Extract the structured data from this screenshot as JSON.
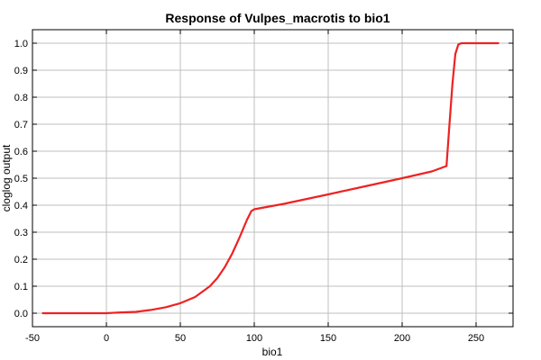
{
  "chart_data": {
    "type": "line",
    "title": "Response of Vulpes_macrotis to bio1",
    "xlabel": "bio1",
    "ylabel": "cloglog output",
    "xlim": [
      -50,
      275
    ],
    "ylim": [
      -0.05,
      1.05
    ],
    "xticks": [
      -50,
      0,
      50,
      100,
      150,
      200,
      250
    ],
    "xtick_labels": [
      "-50",
      "0",
      "50",
      "100",
      "150",
      "200",
      "250"
    ],
    "yticks": [
      0.0,
      0.1,
      0.2,
      0.3,
      0.4,
      0.5,
      0.6,
      0.7,
      0.8,
      0.9,
      1.0
    ],
    "ytick_labels": [
      "0.0",
      "0.1",
      "0.2",
      "0.3",
      "0.4",
      "0.5",
      "0.6",
      "0.7",
      "0.8",
      "0.9",
      "1.0"
    ],
    "grid": true,
    "legend": "none",
    "series": [
      {
        "color": "#ee2222",
        "x": [
          -43,
          -20,
          0,
          10,
          20,
          30,
          40,
          50,
          60,
          70,
          75,
          80,
          85,
          90,
          95,
          98,
          100,
          120,
          150,
          175,
          200,
          220,
          230,
          232,
          234,
          236,
          238,
          240,
          250,
          265
        ],
        "y": [
          0.0,
          0.0,
          0.0,
          0.003,
          0.005,
          0.012,
          0.022,
          0.037,
          0.06,
          0.1,
          0.13,
          0.17,
          0.22,
          0.28,
          0.345,
          0.378,
          0.385,
          0.405,
          0.44,
          0.47,
          0.5,
          0.525,
          0.545,
          0.7,
          0.85,
          0.96,
          0.995,
          1.0,
          1.0,
          1.0
        ]
      }
    ]
  }
}
